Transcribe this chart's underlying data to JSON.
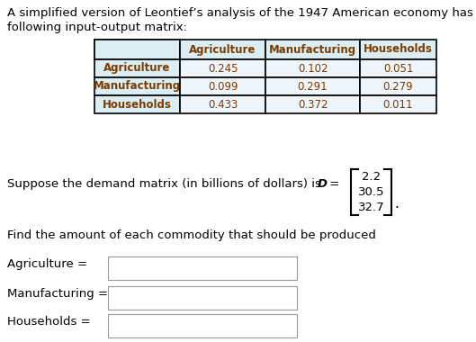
{
  "title_line1": "A simplified version of Leontief’s analysis of the 1947 American economy has the",
  "title_line2": "following input-output matrix:",
  "table_col_headers": [
    "",
    "Agriculture",
    "Manufacturing",
    "Households"
  ],
  "table_row_headers": [
    "Agriculture",
    "Manufacturing",
    "Households"
  ],
  "table_data": [
    [
      0.245,
      0.102,
      0.051
    ],
    [
      0.099,
      0.291,
      0.279
    ],
    [
      0.433,
      0.372,
      0.011
    ]
  ],
  "demand_text_plain": "Suppose the demand matrix (in billions of dollars) is ",
  "demand_var": "D",
  "demand_values": [
    "2.2",
    "30.5",
    "32.7"
  ],
  "find_text": "Find the amount of each commodity that should be produced",
  "input_labels": [
    "Agriculture =",
    "Manufacturing =",
    "Households ="
  ],
  "header_bg": "#daeef3",
  "row_header_bg": "#daeef3",
  "data_bg": "#eef5fb",
  "cell_bg": "#ffffff",
  "background_color": "#ffffff",
  "table_text_color": "#7b3b00",
  "body_text_color": "#000000",
  "find_text_color": "#000000"
}
